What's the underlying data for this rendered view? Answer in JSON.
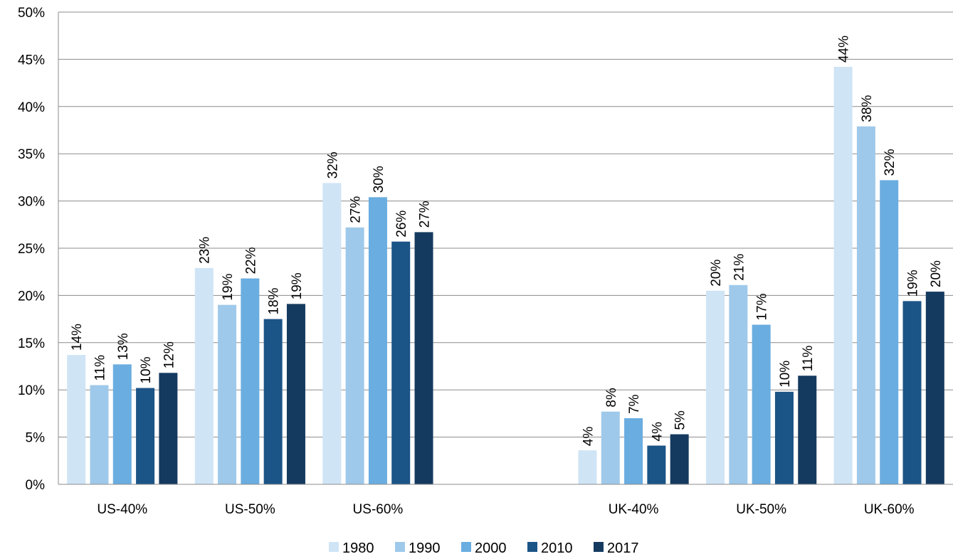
{
  "chart_data": {
    "type": "bar",
    "categories": [
      "US-40%",
      "US-50%",
      "US-60%",
      "",
      "UK-40%",
      "UK-50%",
      "UK-60%"
    ],
    "series": [
      {
        "name": "1980",
        "color": "#cfe4f5",
        "values": [
          13.7,
          22.9,
          31.9,
          null,
          3.6,
          20.5,
          44.2
        ],
        "labels": [
          "14%",
          "23%",
          "32%",
          "",
          "4%",
          "20%",
          "44%"
        ]
      },
      {
        "name": "1990",
        "color": "#9fc9ea",
        "values": [
          10.5,
          19.0,
          27.2,
          null,
          7.7,
          21.1,
          37.9
        ],
        "labels": [
          "11%",
          "19%",
          "27%",
          "",
          "8%",
          "21%",
          "38%"
        ]
      },
      {
        "name": "2000",
        "color": "#6aade0",
        "values": [
          12.7,
          21.8,
          30.4,
          null,
          7.0,
          16.9,
          32.2
        ],
        "labels": [
          "13%",
          "22%",
          "30%",
          "",
          "7%",
          "17%",
          "32%"
        ]
      },
      {
        "name": "2010",
        "color": "#1b5486",
        "values": [
          10.2,
          17.5,
          25.7,
          null,
          4.1,
          9.8,
          19.4
        ],
        "labels": [
          "10%",
          "18%",
          "26%",
          "",
          "4%",
          "10%",
          "19%"
        ]
      },
      {
        "name": "2017",
        "color": "#153a5f",
        "values": [
          11.8,
          19.1,
          26.7,
          null,
          5.3,
          11.5,
          20.4
        ],
        "labels": [
          "12%",
          "19%",
          "27%",
          "",
          "5%",
          "11%",
          "20%"
        ]
      }
    ],
    "yticks": [
      "0%",
      "5%",
      "10%",
      "15%",
      "20%",
      "25%",
      "30%",
      "35%",
      "40%",
      "45%",
      "50%"
    ],
    "ylim": [
      0,
      50
    ],
    "grid": true,
    "legend_position": "bottom",
    "title": "",
    "xlabel": "",
    "ylabel": ""
  }
}
